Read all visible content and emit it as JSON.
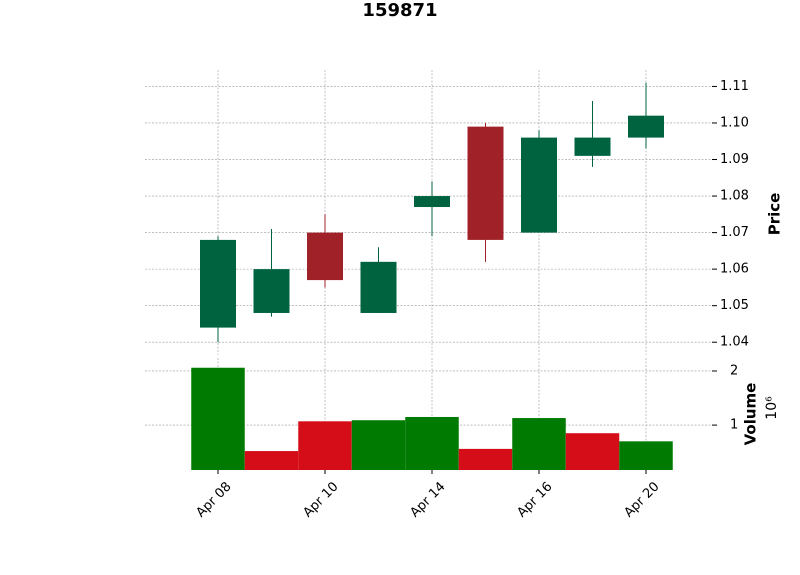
{
  "chart_data": {
    "type": "candlestick",
    "title": "159871",
    "categories": [
      "Apr 08",
      null,
      "Apr 10",
      null,
      "Apr 14",
      null,
      "Apr 16",
      null,
      "Apr 20"
    ],
    "open": [
      1.044,
      1.048,
      1.07,
      1.048,
      1.077,
      1.099,
      1.07,
      1.091,
      1.096
    ],
    "high": [
      1.069,
      1.071,
      1.075,
      1.066,
      1.084,
      1.1,
      1.098,
      1.106,
      1.111
    ],
    "low": [
      1.04,
      1.047,
      1.055,
      1.048,
      1.069,
      1.062,
      1.07,
      1.088,
      1.093
    ],
    "close": [
      1.068,
      1.06,
      1.057,
      1.062,
      1.08,
      1.068,
      1.096,
      1.096,
      1.102
    ],
    "volume": [
      2060000,
      520000,
      1070000,
      1090000,
      1150000,
      560000,
      1130000,
      850000,
      700000
    ],
    "ylabel": "Price",
    "y2label": "Volume",
    "y2_offset_label": "10⁶",
    "ylim": [
      1.0365,
      1.1145
    ],
    "yticks": [
      1.04,
      1.05,
      1.06,
      1.07,
      1.08,
      1.09,
      {
        "value": 1.1,
        "label": "1.10"
      },
      1.11
    ],
    "y2lim": [
      170000,
      2240000
    ],
    "y2ticks": [
      {
        "value": 1000000,
        "label": "1"
      },
      {
        "value": 2000000,
        "label": "2"
      }
    ],
    "up_color": "#006340",
    "down_color": "#a02128",
    "volume_up_color": "#007a00",
    "volume_down_color": "#d50d18",
    "grid": true
  }
}
